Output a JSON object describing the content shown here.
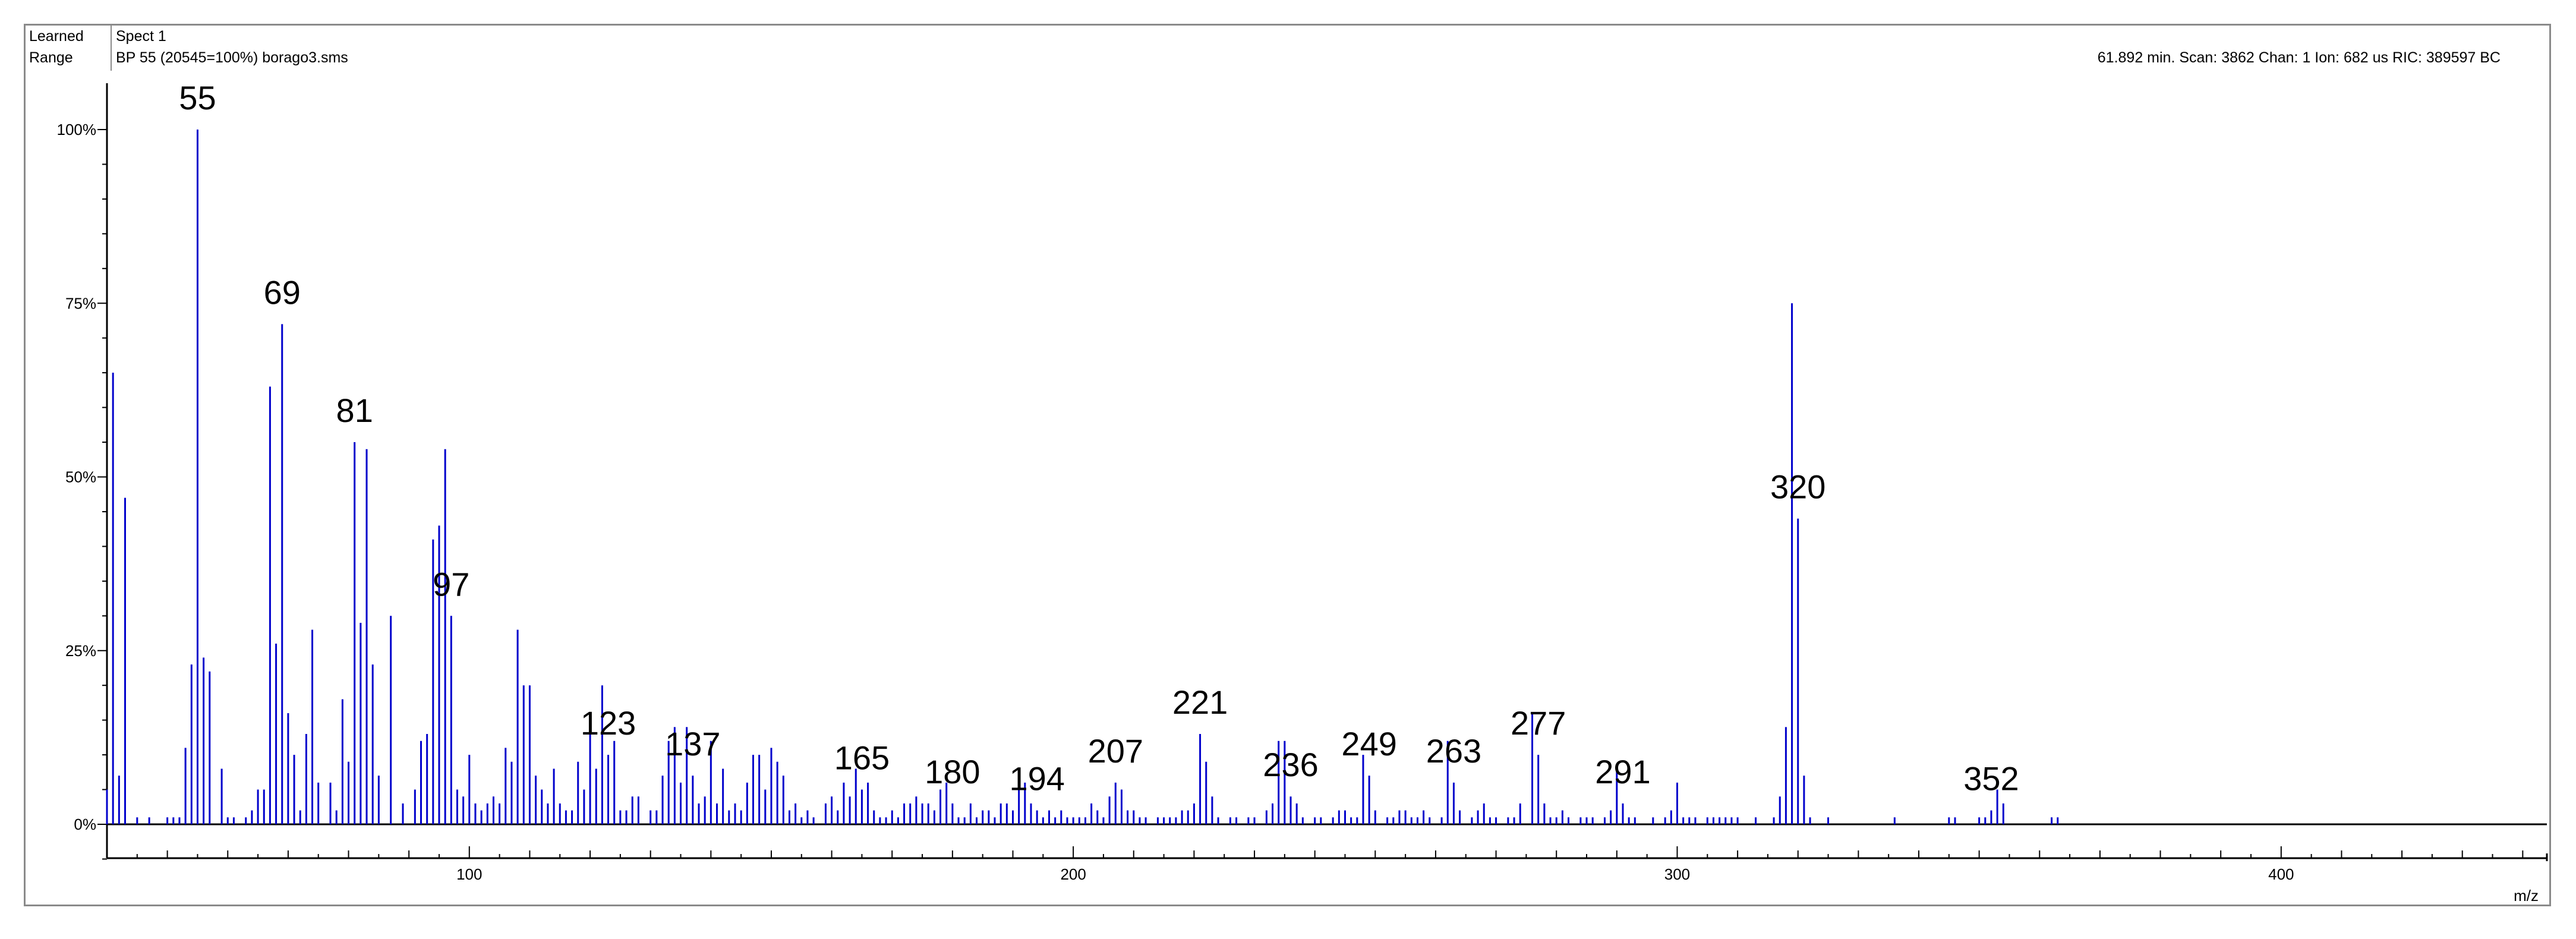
{
  "header": {
    "corner_top": "Learned",
    "corner_bottom": "Range",
    "spectrum_name": "Spect 1",
    "base_peak_info": "BP 55 (20545=100%) borago3.sms",
    "scan_info": "61.892 min. Scan: 3862 Chan: 1 Ion: 682 us RIC: 389597 BC"
  },
  "colors": {
    "bars": "#0000cc",
    "axis": "#000000",
    "frame": "#8a8a8a"
  },
  "chart_data": {
    "type": "bar",
    "title": "",
    "xlabel": "m/z",
    "ylabel": "",
    "xlim": [
      40,
      444
    ],
    "ylim": [
      -5,
      100
    ],
    "x_ticks": [
      100,
      200,
      300,
      400
    ],
    "y_ticks": [
      "0%",
      "25%",
      "50%",
      "75%",
      "100%"
    ],
    "y_tick_values": [
      0,
      25,
      50,
      75,
      100
    ],
    "grid": false,
    "peak_labels": [
      55,
      69,
      81,
      97,
      123,
      137,
      165,
      180,
      194,
      207,
      221,
      236,
      249,
      263,
      277,
      291,
      320,
      352
    ],
    "peaks": [
      [
        40,
        5
      ],
      [
        41,
        65
      ],
      [
        42,
        7
      ],
      [
        43,
        47
      ],
      [
        45,
        1
      ],
      [
        47,
        1
      ],
      [
        50,
        1
      ],
      [
        51,
        1
      ],
      [
        52,
        1
      ],
      [
        53,
        11
      ],
      [
        54,
        23
      ],
      [
        55,
        100
      ],
      [
        56,
        24
      ],
      [
        57,
        22
      ],
      [
        59,
        8
      ],
      [
        60,
        1
      ],
      [
        61,
        1
      ],
      [
        63,
        1
      ],
      [
        64,
        2
      ],
      [
        65,
        5
      ],
      [
        66,
        5
      ],
      [
        67,
        63
      ],
      [
        68,
        26
      ],
      [
        69,
        72
      ],
      [
        70,
        16
      ],
      [
        71,
        10
      ],
      [
        72,
        2
      ],
      [
        73,
        13
      ],
      [
        74,
        28
      ],
      [
        75,
        6
      ],
      [
        77,
        6
      ],
      [
        78,
        2
      ],
      [
        79,
        18
      ],
      [
        80,
        9
      ],
      [
        81,
        55
      ],
      [
        82,
        29
      ],
      [
        83,
        54
      ],
      [
        84,
        23
      ],
      [
        85,
        7
      ],
      [
        87,
        30
      ],
      [
        89,
        3
      ],
      [
        91,
        5
      ],
      [
        92,
        12
      ],
      [
        93,
        13
      ],
      [
        94,
        41
      ],
      [
        95,
        43
      ],
      [
        96,
        54
      ],
      [
        97,
        30
      ],
      [
        98,
        5
      ],
      [
        99,
        4
      ],
      [
        100,
        10
      ],
      [
        101,
        3
      ],
      [
        102,
        2
      ],
      [
        103,
        3
      ],
      [
        104,
        4
      ],
      [
        105,
        3
      ],
      [
        106,
        11
      ],
      [
        107,
        9
      ],
      [
        108,
        28
      ],
      [
        109,
        20
      ],
      [
        110,
        20
      ],
      [
        111,
        7
      ],
      [
        112,
        5
      ],
      [
        113,
        3
      ],
      [
        114,
        8
      ],
      [
        115,
        3
      ],
      [
        116,
        2
      ],
      [
        117,
        2
      ],
      [
        118,
        9
      ],
      [
        119,
        5
      ],
      [
        120,
        14
      ],
      [
        121,
        8
      ],
      [
        122,
        20
      ],
      [
        123,
        10
      ],
      [
        124,
        12
      ],
      [
        125,
        2
      ],
      [
        126,
        2
      ],
      [
        127,
        4
      ],
      [
        128,
        4
      ],
      [
        130,
        2
      ],
      [
        131,
        2
      ],
      [
        132,
        7
      ],
      [
        133,
        12
      ],
      [
        134,
        14
      ],
      [
        135,
        6
      ],
      [
        136,
        14
      ],
      [
        137,
        7
      ],
      [
        138,
        3
      ],
      [
        139,
        4
      ],
      [
        140,
        12
      ],
      [
        141,
        3
      ],
      [
        142,
        8
      ],
      [
        143,
        2
      ],
      [
        144,
        3
      ],
      [
        145,
        2
      ],
      [
        146,
        6
      ],
      [
        147,
        10
      ],
      [
        148,
        10
      ],
      [
        149,
        5
      ],
      [
        150,
        11
      ],
      [
        151,
        9
      ],
      [
        152,
        7
      ],
      [
        153,
        2
      ],
      [
        154,
        3
      ],
      [
        155,
        1
      ],
      [
        156,
        2
      ],
      [
        157,
        1
      ],
      [
        159,
        3
      ],
      [
        160,
        4
      ],
      [
        161,
        2
      ],
      [
        162,
        6
      ],
      [
        163,
        4
      ],
      [
        164,
        8
      ],
      [
        165,
        5
      ],
      [
        166,
        6
      ],
      [
        167,
        2
      ],
      [
        168,
        1
      ],
      [
        169,
        1
      ],
      [
        170,
        2
      ],
      [
        171,
        1
      ],
      [
        172,
        3
      ],
      [
        173,
        3
      ],
      [
        174,
        4
      ],
      [
        175,
        3
      ],
      [
        176,
        3
      ],
      [
        177,
        2
      ],
      [
        178,
        5
      ],
      [
        179,
        6
      ],
      [
        180,
        3
      ],
      [
        181,
        1
      ],
      [
        182,
        1
      ],
      [
        183,
        3
      ],
      [
        184,
        1
      ],
      [
        185,
        2
      ],
      [
        186,
        2
      ],
      [
        187,
        1
      ],
      [
        188,
        3
      ],
      [
        189,
        3
      ],
      [
        190,
        2
      ],
      [
        191,
        5
      ],
      [
        192,
        6
      ],
      [
        193,
        3
      ],
      [
        194,
        2
      ],
      [
        195,
        1
      ],
      [
        196,
        2
      ],
      [
        197,
        1
      ],
      [
        198,
        2
      ],
      [
        199,
        1
      ],
      [
        200,
        1
      ],
      [
        201,
        1
      ],
      [
        202,
        1
      ],
      [
        203,
        3
      ],
      [
        204,
        2
      ],
      [
        205,
        1
      ],
      [
        206,
        4
      ],
      [
        207,
        6
      ],
      [
        208,
        5
      ],
      [
        209,
        2
      ],
      [
        210,
        2
      ],
      [
        211,
        1
      ],
      [
        212,
        1
      ],
      [
        214,
        1
      ],
      [
        215,
        1
      ],
      [
        216,
        1
      ],
      [
        217,
        1
      ],
      [
        218,
        2
      ],
      [
        219,
        2
      ],
      [
        220,
        3
      ],
      [
        221,
        13
      ],
      [
        222,
        9
      ],
      [
        223,
        4
      ],
      [
        224,
        1
      ],
      [
        226,
        1
      ],
      [
        227,
        1
      ],
      [
        229,
        1
      ],
      [
        230,
        1
      ],
      [
        232,
        2
      ],
      [
        233,
        3
      ],
      [
        234,
        12
      ],
      [
        235,
        12
      ],
      [
        236,
        4
      ],
      [
        237,
        3
      ],
      [
        238,
        1
      ],
      [
        240,
        1
      ],
      [
        241,
        1
      ],
      [
        243,
        1
      ],
      [
        244,
        2
      ],
      [
        245,
        2
      ],
      [
        246,
        1
      ],
      [
        247,
        1
      ],
      [
        248,
        10
      ],
      [
        249,
        7
      ],
      [
        250,
        2
      ],
      [
        252,
        1
      ],
      [
        253,
        1
      ],
      [
        254,
        2
      ],
      [
        255,
        2
      ],
      [
        256,
        1
      ],
      [
        257,
        1
      ],
      [
        258,
        2
      ],
      [
        259,
        1
      ],
      [
        261,
        1
      ],
      [
        262,
        12
      ],
      [
        263,
        6
      ],
      [
        264,
        2
      ],
      [
        266,
        1
      ],
      [
        267,
        2
      ],
      [
        268,
        3
      ],
      [
        269,
        1
      ],
      [
        270,
        1
      ],
      [
        272,
        1
      ],
      [
        273,
        1
      ],
      [
        274,
        3
      ],
      [
        276,
        16
      ],
      [
        277,
        10
      ],
      [
        278,
        3
      ],
      [
        279,
        1
      ],
      [
        280,
        1
      ],
      [
        281,
        2
      ],
      [
        282,
        1
      ],
      [
        284,
        1
      ],
      [
        285,
        1
      ],
      [
        286,
        1
      ],
      [
        288,
        1
      ],
      [
        289,
        2
      ],
      [
        290,
        8
      ],
      [
        291,
        3
      ],
      [
        292,
        1
      ],
      [
        293,
        1
      ],
      [
        296,
        1
      ],
      [
        298,
        1
      ],
      [
        299,
        2
      ],
      [
        300,
        6
      ],
      [
        301,
        1
      ],
      [
        302,
        1
      ],
      [
        303,
        1
      ],
      [
        305,
        1
      ],
      [
        306,
        1
      ],
      [
        307,
        1
      ],
      [
        308,
        1
      ],
      [
        309,
        1
      ],
      [
        310,
        1
      ],
      [
        313,
        1
      ],
      [
        316,
        1
      ],
      [
        317,
        4
      ],
      [
        318,
        14
      ],
      [
        319,
        75
      ],
      [
        320,
        44
      ],
      [
        321,
        7
      ],
      [
        322,
        1
      ],
      [
        325,
        1
      ],
      [
        336,
        1
      ],
      [
        345,
        1
      ],
      [
        346,
        1
      ],
      [
        350,
        1
      ],
      [
        351,
        1
      ],
      [
        352,
        2
      ],
      [
        353,
        5
      ],
      [
        354,
        3
      ],
      [
        362,
        1
      ],
      [
        363,
        1
      ]
    ]
  }
}
